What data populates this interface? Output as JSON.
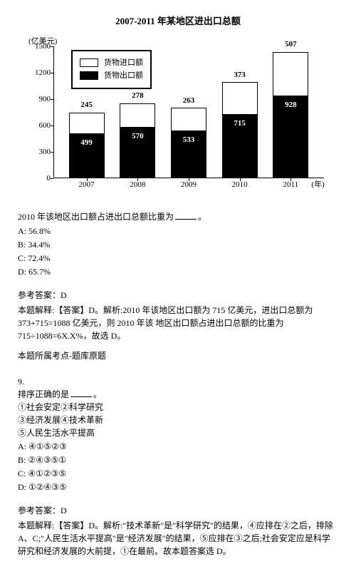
{
  "chart": {
    "title": "2007-2011 年某地区进出口总额",
    "type": "stacked-bar",
    "y_label": "(亿美元)",
    "x_label_suffix": "(年)",
    "y_max": 1500,
    "y_ticks": [
      0,
      300,
      600,
      900,
      1200,
      1500
    ],
    "legend": {
      "import": "货物进口额",
      "export": "货物出口额"
    },
    "colors": {
      "export": "#000000",
      "import_fill": "#ffffff",
      "border": "#000000",
      "text_on_dark": "#ffffff"
    },
    "years": [
      "2007",
      "2008",
      "2009",
      "2010",
      "2011"
    ],
    "export_values": [
      499,
      570,
      533,
      715,
      928
    ],
    "import_values": [
      245,
      278,
      263,
      373,
      507
    ]
  },
  "q8": {
    "stem_pre": "2010 年该地区出口额占进出口总额比重为",
    "stem_post": "。",
    "options": {
      "A": "A: 56.8%",
      "B": "B: 34.4%",
      "C": "C: 72.4%",
      "D": "D: 65.7%"
    },
    "answer_label": "参考答案：D",
    "explanation": "本题解释:【答案】D。解析:2010 年该地区出口额为 715 亿美元，进出口总额为 373+715=1088 亿美元，则 2010 年该 地区出口额占进出口总额的比重为 715÷1088=6X.X%，故选 D。",
    "source": "本题所属考点-题库原题"
  },
  "q9": {
    "number": "9.",
    "stem_pre": "排序正确的是",
    "stem_post": "。",
    "items": [
      "①社会安定②科学研究",
      "③经济发展④技术革新",
      "⑤人民生活水平提高"
    ],
    "options": {
      "A": "A: ④①⑤②③",
      "B": "B: ②④③⑤①",
      "C": "C: ④①②③⑤",
      "D": "D: ①②④③⑤"
    },
    "answer_label": "参考答案：D",
    "explanation": "本题解释:【答案】D。解析:\"技术革新\"是\"科学研究\"的结果，④应排在②之后，排除 A、C;\"人民生活水平提高\"是\"经济发展\"的结果，⑤应排在③之后;社会安定应是科学研究和经济发展的大前提，①在最前。故本题答案选 D。"
  }
}
